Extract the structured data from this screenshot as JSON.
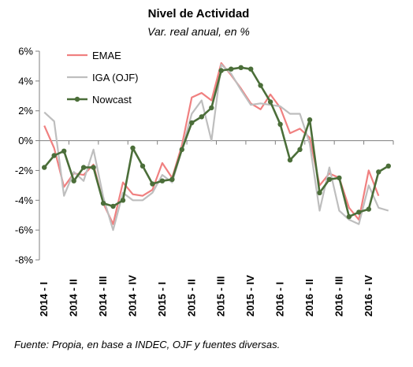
{
  "chart_data": {
    "type": "line",
    "title": "Nivel de Actividad",
    "subtitle": "Var. real anual, en %",
    "source": "Fuente: Propia, en base a INDEC, OJF y fuentes diversas.",
    "xlabel": "",
    "ylabel": "",
    "ylim": [
      -8,
      6
    ],
    "yticks": [
      6,
      4,
      2,
      0,
      -2,
      -4,
      -6,
      -8
    ],
    "ytick_labels": [
      "6%",
      "4%",
      "2%",
      "0%",
      "-2%",
      "-4%",
      "-6%",
      "-8%"
    ],
    "x_tick_labels": [
      "2014 - I",
      "2014 - II",
      "2014 - III",
      "2014 - IV",
      "2015 - I",
      "2015 - II",
      "2015 - III",
      "2015 - IV",
      "2016 - I",
      "2016 - II",
      "2016 - III",
      "2016 - IV"
    ],
    "grid": false,
    "legend_position": "top-left",
    "series": [
      {
        "name": "EMAE",
        "color": "#F08080",
        "marker": false,
        "values": [
          1.0,
          -0.5,
          -3.1,
          -2.2,
          -2.3,
          -1.6,
          -4.2,
          -5.6,
          -2.8,
          -3.6,
          -3.7,
          -3.3,
          -1.5,
          -2.5,
          -0.3,
          2.9,
          3.2,
          2.7,
          5.2,
          4.4,
          3.5,
          2.5,
          2.1,
          3.1,
          2.2,
          0.5,
          0.8,
          0.2,
          -3.0,
          -2.2,
          -2.5,
          -4.5,
          -5.3,
          -2.0,
          -3.7
        ]
      },
      {
        "name": "IGA (OJF)",
        "color": "#BEBEBE",
        "marker": false,
        "values": [
          1.9,
          1.3,
          -3.7,
          -2.1,
          -2.7,
          -0.6,
          -3.8,
          -6.0,
          -3.5,
          -4.0,
          -4.0,
          -3.5,
          -2.3,
          -2.8,
          -0.6,
          1.8,
          2.7,
          0.0,
          5.1,
          4.5,
          3.4,
          2.4,
          2.5,
          2.4,
          2.3,
          1.8,
          1.8,
          -0.2,
          -4.7,
          -1.8,
          -4.7,
          -5.3,
          -5.6,
          -3.0,
          -4.5,
          -4.7
        ]
      },
      {
        "name": "Nowcast",
        "color": "#4B6E39",
        "marker": true,
        "values": [
          -1.8,
          -1.0,
          -0.7,
          -2.7,
          -1.8,
          -1.8,
          -4.2,
          -4.4,
          -4.0,
          -0.5,
          -1.7,
          -2.9,
          -2.7,
          -2.6,
          -0.6,
          1.2,
          1.6,
          2.2,
          4.7,
          4.8,
          4.9,
          4.8,
          3.7,
          2.6,
          1.1,
          -1.3,
          -0.6,
          1.4,
          -3.5,
          -2.6,
          -2.5,
          -5.1,
          -4.8,
          -4.6,
          -2.1,
          -1.7
        ]
      }
    ]
  }
}
